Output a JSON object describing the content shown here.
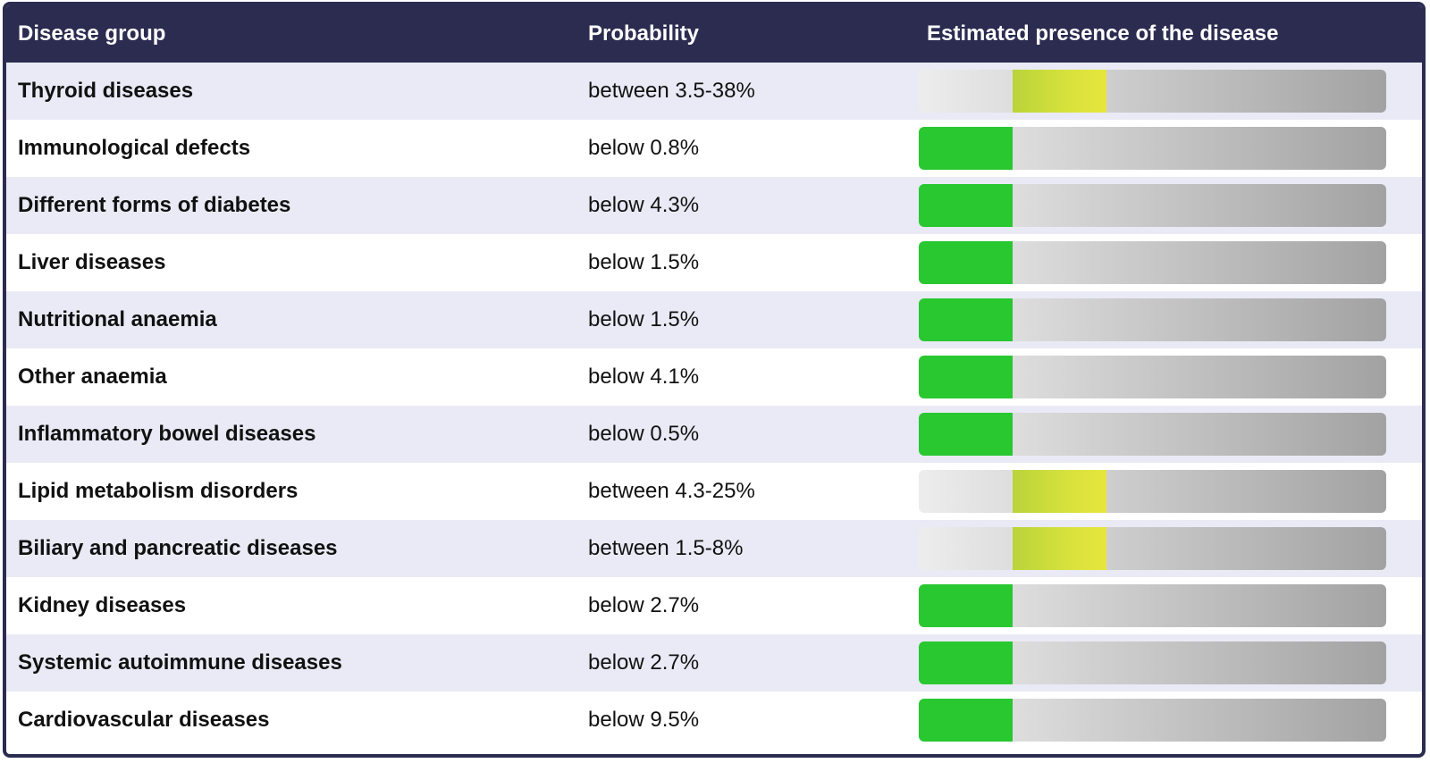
{
  "table": {
    "headers": {
      "group": "Disease group",
      "probability": "Probability",
      "presence": "Estimated presence of the disease"
    },
    "colors": {
      "header_bg": "#2b2c50",
      "low": "#29c730",
      "moderate": "#d8e23c",
      "track": "#bdbdbd"
    },
    "rows": [
      {
        "group": "Thyroid diseases",
        "probability": "between 3.5-38%",
        "level": 1
      },
      {
        "group": "Immunological defects",
        "probability": "below 0.8%",
        "level": 0
      },
      {
        "group": "Different forms of diabetes",
        "probability": "below 4.3%",
        "level": 0
      },
      {
        "group": "Liver diseases",
        "probability": "below 1.5%",
        "level": 0
      },
      {
        "group": "Nutritional anaemia",
        "probability": "below 1.5%",
        "level": 0
      },
      {
        "group": "Other anaemia",
        "probability": "below 4.1%",
        "level": 0
      },
      {
        "group": "Inflammatory bowel diseases",
        "probability": "below 0.5%",
        "level": 0
      },
      {
        "group": "Lipid metabolism disorders",
        "probability": "between 4.3-25%",
        "level": 1
      },
      {
        "group": "Biliary and pancreatic diseases",
        "probability": "between 1.5-8%",
        "level": 1
      },
      {
        "group": "Kidney diseases",
        "probability": "below 2.7%",
        "level": 0
      },
      {
        "group": "Systemic autoimmune diseases",
        "probability": "below 2.7%",
        "level": 0
      },
      {
        "group": "Cardiovascular diseases",
        "probability": "below 9.5%",
        "level": 0
      }
    ]
  }
}
